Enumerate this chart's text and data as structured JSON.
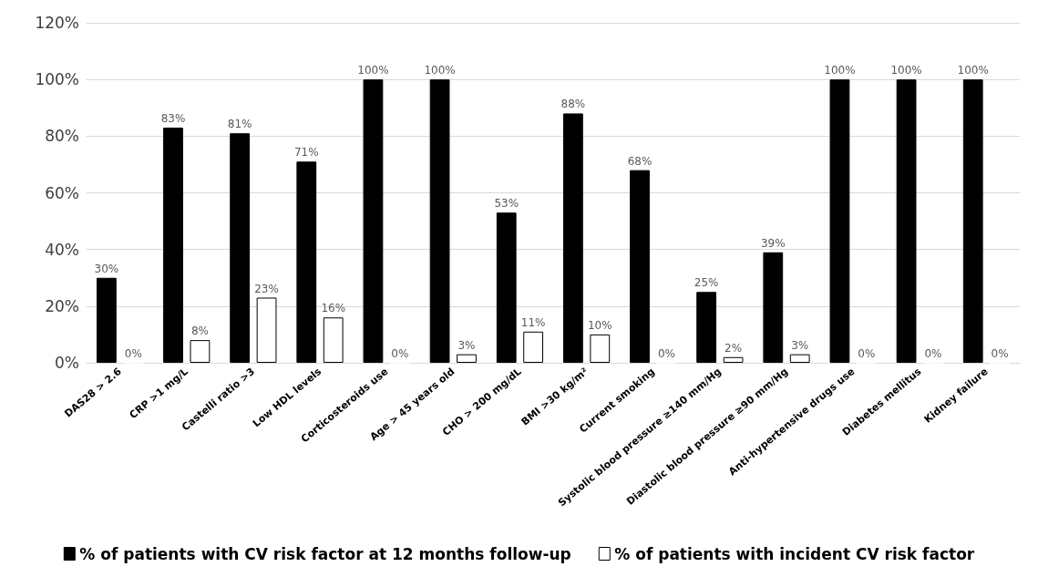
{
  "chart_data": {
    "type": "bar",
    "categories": [
      "DAS28 > 2.6",
      "CRP >1 mg/L",
      "Castelli ratio >3",
      "Low HDL levels",
      "Corticosteroids use",
      "Age > 45 years old",
      "CHO > 200 mg/dL",
      "BMI >30 kg/m²",
      "Current smoking",
      "Systolic blood pressure ≥140 mm/Hg",
      "Diastolic blood pressure ≥90 mm/Hg",
      "Anti-hypertensive drugs use",
      "Diabetes mellitus",
      "Kidney failure"
    ],
    "series": [
      {
        "name": "% of patients with CV risk factor at 12 months follow-up",
        "color": "#000000",
        "values": [
          30,
          83,
          81,
          71,
          100,
          100,
          53,
          88,
          68,
          25,
          39,
          100,
          100,
          100
        ],
        "value_labels": [
          "30%",
          "83%",
          "81%",
          "71%",
          "100%",
          "100%",
          "53%",
          "88%",
          "68%",
          "25%",
          "39%",
          "100%",
          "100%",
          "100%"
        ]
      },
      {
        "name": "% of patients with incident CV risk factor",
        "color": "#ffffff",
        "values": [
          0,
          8,
          23,
          16,
          0,
          3,
          11,
          10,
          0,
          2,
          3,
          0,
          0,
          0
        ],
        "value_labels": [
          "0%",
          "8%",
          "23%",
          "16%",
          "0%",
          "3%",
          "11%",
          "10%",
          "0%",
          "2%",
          "3%",
          "0%",
          "0%",
          "0%"
        ]
      }
    ],
    "ylim": [
      0,
      120
    ],
    "yticks": [
      {
        "value": 0,
        "label": "0%"
      },
      {
        "value": 20,
        "label": "20%"
      },
      {
        "value": 40,
        "label": "40%"
      },
      {
        "value": 60,
        "label": "60%"
      },
      {
        "value": 80,
        "label": "80%"
      },
      {
        "value": 100,
        "label": "100%"
      },
      {
        "value": 120,
        "label": "120%"
      }
    ],
    "grid": "y",
    "legend": "bottom"
  }
}
